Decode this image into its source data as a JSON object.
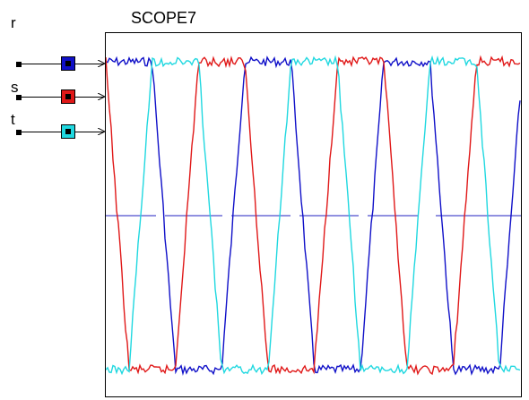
{
  "scope": {
    "title": "SCOPE7"
  },
  "signals": [
    {
      "label": "r",
      "color": "#1010c8"
    },
    {
      "label": "s",
      "color": "#e01818"
    },
    {
      "label": "t",
      "color": "#20d8e0"
    }
  ],
  "colors": {
    "reference_line": "#2020c0",
    "frame": "#000000"
  }
}
